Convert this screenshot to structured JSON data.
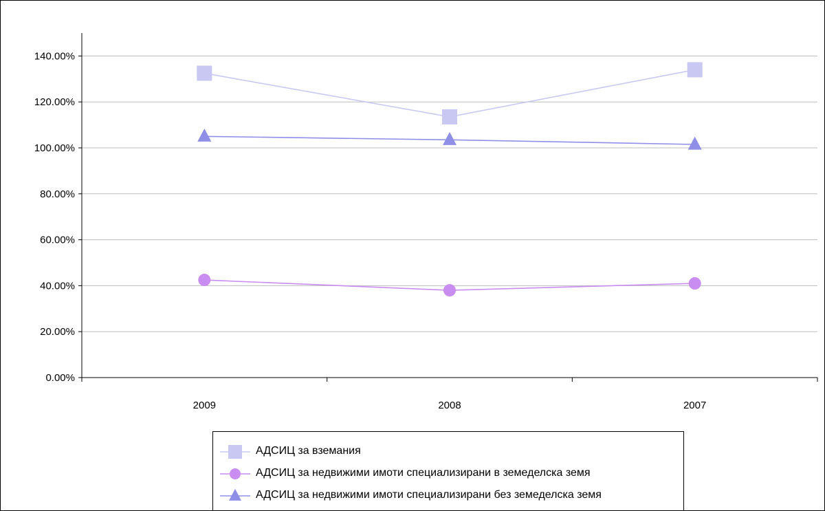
{
  "chart_data": {
    "type": "line",
    "categories": [
      "2009",
      "2008",
      "2007"
    ],
    "y_ticks": [
      "0.00%",
      "20.00%",
      "40.00%",
      "60.00%",
      "80.00%",
      "100.00%",
      "120.00%",
      "140.00%"
    ],
    "ylim": [
      0,
      150
    ],
    "grid": true,
    "legend_position": "bottom",
    "series": [
      {
        "name": "АДСИЦ за вземания",
        "values": [
          132.5,
          113.5,
          134.0
        ],
        "color": "#c8c8f2",
        "marker": "square"
      },
      {
        "name": "АДСИЦ за недвижими имоти специализирани в земеделска земя",
        "values": [
          42.5,
          38.0,
          41.0
        ],
        "color": "#c98cf0",
        "marker": "circle"
      },
      {
        "name": "АДСИЦ за недвижими имоти специализирани без земеделска земя",
        "values": [
          105.0,
          103.5,
          101.5
        ],
        "color": "#8f8fe8",
        "marker": "triangle"
      }
    ]
  }
}
